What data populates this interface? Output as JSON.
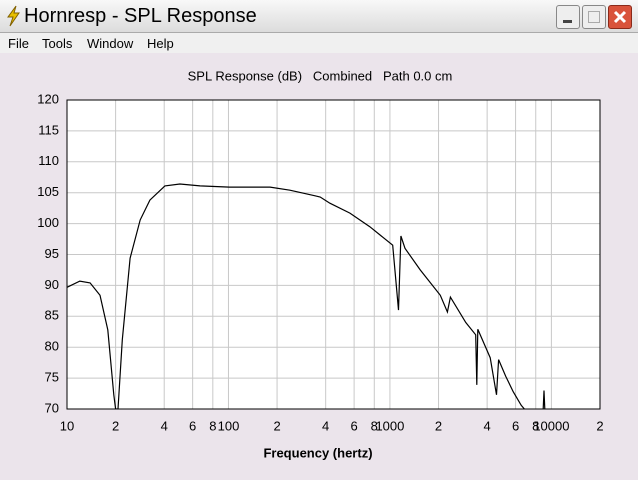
{
  "window": {
    "title": "Hornresp - SPL Response"
  },
  "menu": [
    "File",
    "Tools",
    "Window",
    "Help"
  ],
  "chart_data": {
    "type": "line",
    "log_x": true,
    "grid": true,
    "title": "SPL Response (dB)   Combined   Path 0.0 cm",
    "x_label": "Frequency (hertz)",
    "xlim": [
      10,
      20000
    ],
    "ylim": [
      70,
      120
    ],
    "xticks": [
      10,
      {
        "value": 20,
        "label": "2"
      },
      {
        "value": 40,
        "label": "4"
      },
      {
        "value": 60,
        "label": "6"
      },
      {
        "value": 80,
        "label": "8"
      },
      100,
      {
        "value": 200,
        "label": "2"
      },
      {
        "value": 400,
        "label": "4"
      },
      {
        "value": 600,
        "label": "6"
      },
      {
        "value": 800,
        "label": "8"
      },
      1000,
      {
        "value": 2000,
        "label": "2"
      },
      {
        "value": 4000,
        "label": "4"
      },
      {
        "value": 6000,
        "label": "6"
      },
      {
        "value": 8000,
        "label": "8"
      },
      10000,
      {
        "value": 20000,
        "label": "2"
      }
    ],
    "yticks": [
      70,
      75,
      80,
      85,
      90,
      95,
      100,
      105,
      110,
      115,
      120
    ],
    "x": [
      10,
      12,
      13.9,
      16,
      17.9,
      19.5,
      20,
      20.7,
      22,
      24.6,
      28.4,
      32.6,
      40.4,
      50,
      66.6,
      101.5,
      181,
      240,
      344,
      370,
      425,
      565,
      750,
      1040,
      1130,
      1170,
      1240,
      1540,
      2050,
      2270,
      2370,
      2950,
      3400,
      3450,
      3500,
      4180,
      4570,
      4710,
      5210,
      5800,
      6500,
      6800,
      7500,
      8900,
      9000,
      9100
    ],
    "series": [
      {
        "color": "#000000",
        "values": [
          89.7,
          90.7,
          90.4,
          88.4,
          82.8,
          72.3,
          70,
          70,
          81.2,
          94.4,
          100.6,
          103.8,
          106.1,
          106.4,
          106.1,
          105.9,
          105.9,
          105.4,
          104.5,
          104.3,
          103.3,
          101.7,
          99.5,
          96.5,
          86,
          98,
          96,
          92.5,
          88.4,
          85.7,
          88.1,
          84,
          82,
          73.9,
          82.9,
          78.3,
          72.3,
          78,
          75.3,
          72.8,
          70.6,
          70,
          null,
          70,
          73,
          70
        ]
      }
    ]
  }
}
